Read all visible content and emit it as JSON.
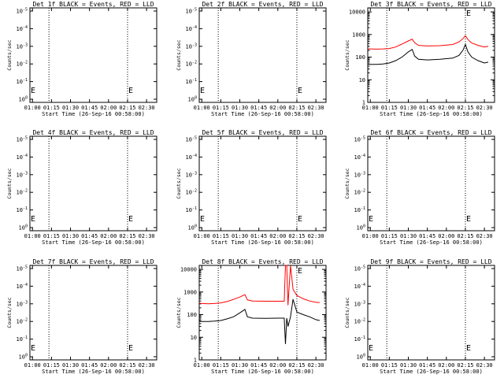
{
  "figure": {
    "x_tick_labels": [
      "01:00",
      "01:15",
      "01:30",
      "01:45",
      "02:00",
      "02:15",
      "02:30"
    ],
    "x_label": "Start Time (26-Sep-16 00:58:00)",
    "y_label": "Counts/sec",
    "dotted_markers_time": [
      "01:13",
      "02:15"
    ],
    "flag_markers": [
      {
        "time": "00:58",
        "text": "E"
      },
      {
        "time": "02:15",
        "text": "E"
      }
    ],
    "colors": {
      "events": "#000000",
      "lld": "#ff0000",
      "axes": "#000000",
      "background": "#ffffff"
    }
  },
  "chart_data": [
    {
      "type": "line",
      "title": "Det 1f BLACK = Events, RED = LLD",
      "yscale": "log",
      "ytick_exponents": [
        0,
        -1,
        -2,
        -3,
        -4,
        -5
      ],
      "series": []
    },
    {
      "type": "line",
      "title": "Det 2f BLACK = Events, RED = LLD",
      "yscale": "log",
      "ytick_exponents": [
        0,
        -1,
        -2,
        -3,
        -4,
        -5
      ],
      "series": []
    },
    {
      "type": "line",
      "title": "Det 3f BLACK = Events, RED = LLD",
      "yscale": "log",
      "ytick_labels": [
        "1",
        "10",
        "100",
        "1000",
        "10000"
      ],
      "ylim": [
        1,
        15000
      ],
      "series": [
        {
          "name": "Events",
          "color": "#000000",
          "x": [
            "00:58",
            "01:00",
            "01:05",
            "01:10",
            "01:15",
            "01:20",
            "01:25",
            "01:30",
            "01:33",
            "01:35",
            "01:38",
            "01:45",
            "01:55",
            "02:05",
            "02:10",
            "02:13",
            "02:15",
            "02:17",
            "02:20",
            "02:25",
            "02:30",
            "02:33"
          ],
          "values": [
            50,
            48,
            48,
            50,
            55,
            70,
            100,
            170,
            220,
            110,
            80,
            75,
            80,
            90,
            120,
            200,
            360,
            170,
            100,
            70,
            55,
            60
          ]
        },
        {
          "name": "LLD",
          "color": "#ff0000",
          "x": [
            "00:58",
            "01:00",
            "01:05",
            "01:10",
            "01:15",
            "01:20",
            "01:25",
            "01:30",
            "01:33",
            "01:35",
            "01:38",
            "01:45",
            "01:55",
            "02:05",
            "02:10",
            "02:13",
            "02:15",
            "02:17",
            "02:20",
            "02:25",
            "02:30",
            "02:33"
          ],
          "values": [
            230,
            230,
            225,
            230,
            240,
            280,
            380,
            520,
            620,
            430,
            330,
            310,
            320,
            360,
            470,
            650,
            880,
            600,
            420,
            330,
            280,
            300
          ]
        }
      ]
    },
    {
      "type": "line",
      "title": "Det 4f BLACK = Events, RED = LLD",
      "yscale": "log",
      "ytick_exponents": [
        0,
        -1,
        -2,
        -3,
        -4,
        -5
      ],
      "series": []
    },
    {
      "type": "line",
      "title": "Det 5f BLACK = Events, RED = LLD",
      "yscale": "log",
      "ytick_exponents": [
        0,
        -1,
        -2,
        -3,
        -4,
        -5
      ],
      "series": []
    },
    {
      "type": "line",
      "title": "Det 6f BLACK = Events, RED = LLD",
      "yscale": "log",
      "ytick_exponents": [
        0,
        -1,
        -2,
        -3,
        -4,
        -5
      ],
      "series": []
    },
    {
      "type": "line",
      "title": "Det 7f BLACK = Events, RED = LLD",
      "yscale": "log",
      "ytick_exponents": [
        0,
        -1,
        -2,
        -3,
        -4,
        -5
      ],
      "series": []
    },
    {
      "type": "line",
      "title": "Det 8f BLACK = Events, RED = LLD",
      "yscale": "log",
      "ytick_labels": [
        "1",
        "10",
        "100",
        "1000",
        "10000"
      ],
      "ylim": [
        1,
        15000
      ],
      "series": [
        {
          "name": "Events",
          "color": "#000000",
          "x": [
            "00:58",
            "01:00",
            "01:05",
            "01:10",
            "01:15",
            "01:20",
            "01:25",
            "01:30",
            "01:34",
            "01:36",
            "01:40",
            "01:50",
            "02:00",
            "02:05",
            "02:06",
            "02:07",
            "02:08",
            "02:10",
            "02:12",
            "02:15",
            "02:20",
            "02:25",
            "02:30",
            "02:33"
          ],
          "values": [
            55,
            50,
            50,
            52,
            55,
            65,
            80,
            120,
            170,
            80,
            70,
            68,
            70,
            70,
            5,
            70,
            30,
            80,
            480,
            130,
            100,
            80,
            60,
            55
          ]
        },
        {
          "name": "LLD",
          "color": "#ff0000",
          "x": [
            "00:58",
            "01:00",
            "01:05",
            "01:10",
            "01:15",
            "01:20",
            "01:25",
            "01:30",
            "01:34",
            "01:36",
            "01:40",
            "01:50",
            "02:00",
            "02:05",
            "02:06",
            "02:07",
            "02:08",
            "02:10",
            "02:12",
            "02:15",
            "02:20",
            "02:25",
            "02:30",
            "02:33"
          ],
          "values": [
            320,
            310,
            300,
            310,
            330,
            380,
            470,
            600,
            760,
            450,
            400,
            390,
            390,
            390,
            15000,
            15000,
            260,
            15000,
            1300,
            700,
            500,
            400,
            350,
            340
          ]
        }
      ]
    },
    {
      "type": "line",
      "title": "Det 9f BLACK = Events, RED = LLD",
      "yscale": "log",
      "ytick_exponents": [
        0,
        -1,
        -2,
        -3,
        -4,
        -5
      ],
      "series": []
    }
  ]
}
